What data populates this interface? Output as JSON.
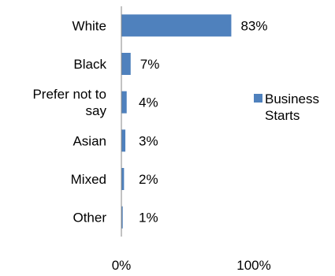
{
  "chart_data": {
    "type": "bar",
    "orientation": "horizontal",
    "categories": [
      "White",
      "Black",
      "Prefer not to say",
      "Asian",
      "Mixed",
      "Other"
    ],
    "category_label_lines": [
      [
        "White"
      ],
      [
        "Black"
      ],
      [
        "Prefer not to",
        "say"
      ],
      [
        "Asian"
      ],
      [
        "Mixed"
      ],
      [
        "Other"
      ]
    ],
    "series": [
      {
        "name": "Business Starts",
        "values": [
          83,
          7,
          4,
          3,
          2,
          1
        ],
        "color": "#4f81bd"
      }
    ],
    "data_labels": [
      "83%",
      "7%",
      "4%",
      "3%",
      "2%",
      "1%"
    ],
    "xlim": [
      0,
      100
    ],
    "x_ticks": [
      0,
      100
    ],
    "x_tick_labels": [
      "0%",
      "100%"
    ],
    "grid": false,
    "legend": {
      "position": "right",
      "lines": [
        "Business",
        "Starts"
      ]
    },
    "axis_color": "#868686"
  }
}
